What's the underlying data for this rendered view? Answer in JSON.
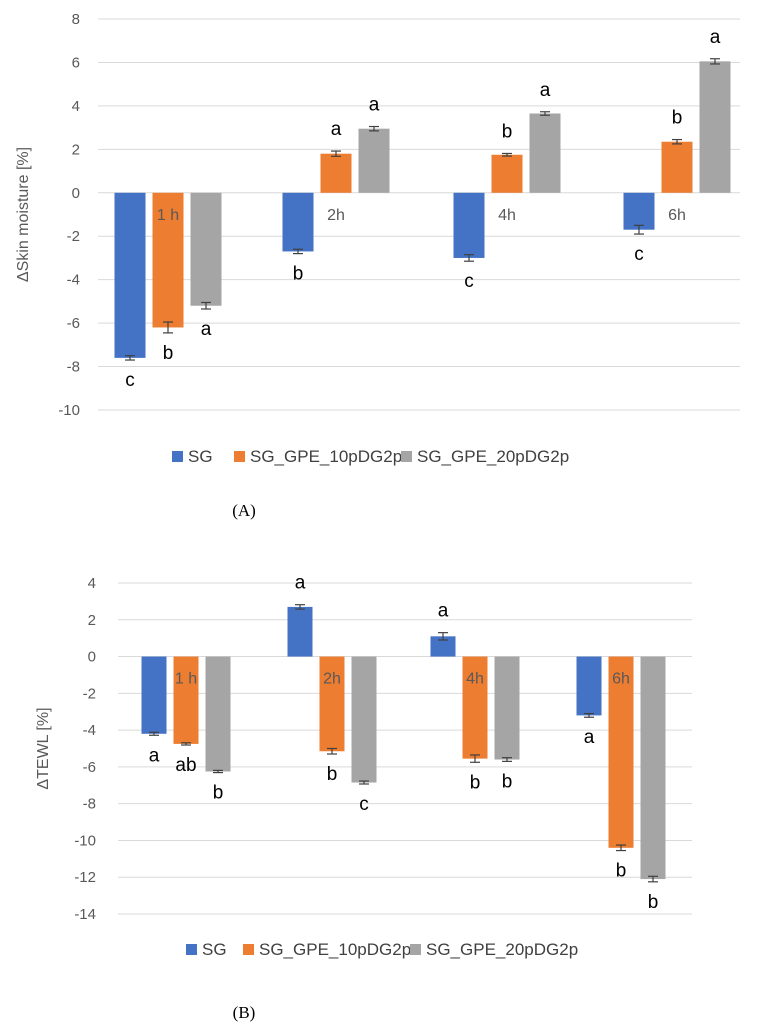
{
  "chart_data": [
    {
      "type": "bar",
      "panel_label": "(A)",
      "ylabel": "ΔSkin moisture [%]",
      "ylim": [
        -10,
        8
      ],
      "yticks": [
        8,
        6,
        4,
        2,
        0,
        -2,
        -4,
        -6,
        -8,
        -10
      ],
      "grid": true,
      "legend_position": "bottom",
      "categories": [
        "1 h",
        "2h",
        "4h",
        "6h"
      ],
      "series": [
        {
          "name": "SG",
          "color": "#4472C4",
          "values": [
            -7.6,
            -2.7,
            -3.0,
            -1.7
          ],
          "errors": [
            0.1,
            0.1,
            0.15,
            0.2
          ],
          "letters": [
            "c",
            "b",
            "c",
            "c"
          ]
        },
        {
          "name": "SG_GPE_10pDG2p",
          "color": "#ED7D31",
          "values": [
            -6.2,
            1.8,
            1.75,
            2.35
          ],
          "errors": [
            0.25,
            0.12,
            0.06,
            0.1
          ],
          "letters": [
            "b",
            "a",
            "b",
            "b"
          ]
        },
        {
          "name": "SG_GPE_20pDG2p",
          "color": "#A5A5A5",
          "values": [
            -5.2,
            2.95,
            3.65,
            6.05
          ],
          "errors": [
            0.15,
            0.1,
            0.08,
            0.12
          ],
          "letters": [
            "a",
            "a",
            "a",
            "a"
          ]
        }
      ]
    },
    {
      "type": "bar",
      "panel_label": "(B)",
      "ylabel": "ΔTEWL [%]",
      "ylim": [
        -14,
        4
      ],
      "yticks": [
        4,
        2,
        0,
        -2,
        -4,
        -6,
        -8,
        -10,
        -12,
        -14
      ],
      "grid": true,
      "legend_position": "bottom",
      "categories": [
        "1 h",
        "2h",
        "4h",
        "6h"
      ],
      "series": [
        {
          "name": "SG",
          "color": "#4472C4",
          "values": [
            -4.2,
            2.7,
            1.1,
            -3.2
          ],
          "errors": [
            0.08,
            0.12,
            0.2,
            0.1
          ],
          "letters": [
            "a",
            "a",
            "a",
            "a"
          ]
        },
        {
          "name": "SG_GPE_10pDG2p",
          "color": "#ED7D31",
          "values": [
            -4.75,
            -5.15,
            -5.55,
            -10.4
          ],
          "errors": [
            0.06,
            0.15,
            0.2,
            0.15
          ],
          "letters": [
            "ab",
            "b",
            "b",
            "b"
          ]
        },
        {
          "name": "SG_GPE_20pDG2p",
          "color": "#A5A5A5",
          "values": [
            -6.25,
            -6.85,
            -5.6,
            -12.1
          ],
          "errors": [
            0.06,
            0.08,
            0.1,
            0.15
          ],
          "letters": [
            "b",
            "c",
            "b",
            "b"
          ]
        }
      ]
    }
  ]
}
